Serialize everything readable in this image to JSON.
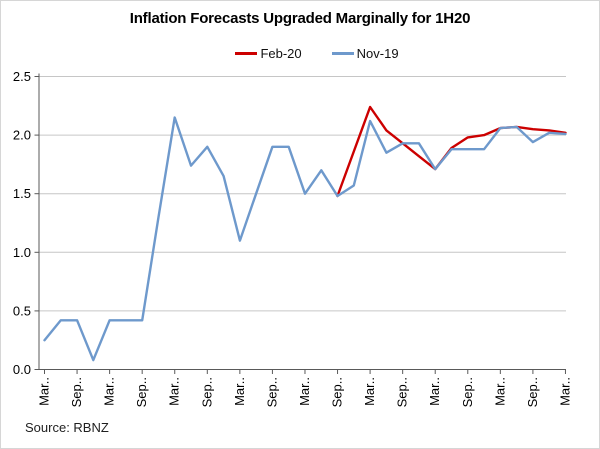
{
  "chart_data": {
    "type": "line",
    "title": "Inflation Forecasts Upgraded Marginally for 1H20",
    "source": "Source: RBNZ",
    "grid": true,
    "legend_position": "top-center",
    "ylim": [
      0.0,
      2.5
    ],
    "y_ticks": [
      "0.0",
      "0.5",
      "1.0",
      "1.5",
      "2.0",
      "2.5"
    ],
    "x_tick_every": 2,
    "x_tick_labels": [
      "Mar..",
      "Sep..",
      "Mar..",
      "Sep..",
      "Mar..",
      "Sep..",
      "Mar..",
      "Sep..",
      "Mar..",
      "Sep..",
      "Mar..",
      "Sep..",
      "Mar..",
      "Sep..",
      "Mar..",
      "Sep..",
      "Mar.."
    ],
    "colors": {
      "feb20": "#CC0000",
      "nov19": "#6E99CC",
      "gridline": "#C6C6C6",
      "axis": "#595959",
      "text": "#1f1f1f"
    },
    "series": [
      {
        "name": "Feb-20",
        "color": "#CC0000",
        "values": [
          null,
          null,
          null,
          null,
          null,
          null,
          null,
          null,
          null,
          null,
          null,
          null,
          null,
          null,
          null,
          null,
          null,
          null,
          1.48,
          1.86,
          2.24,
          2.04,
          1.93,
          1.82,
          1.71,
          1.89,
          1.98,
          2.0,
          2.06,
          2.07,
          2.05,
          2.04,
          2.02
        ]
      },
      {
        "name": "Nov-19",
        "color": "#6E99CC",
        "values": [
          0.25,
          0.42,
          0.42,
          0.08,
          0.42,
          0.42,
          0.42,
          1.3,
          2.15,
          1.74,
          1.9,
          1.65,
          1.1,
          1.5,
          1.9,
          1.9,
          1.5,
          1.7,
          1.48,
          1.57,
          2.12,
          1.85,
          1.93,
          1.93,
          1.71,
          1.88,
          1.88,
          1.88,
          2.06,
          2.07,
          1.94,
          2.02,
          2.01
        ]
      }
    ]
  }
}
